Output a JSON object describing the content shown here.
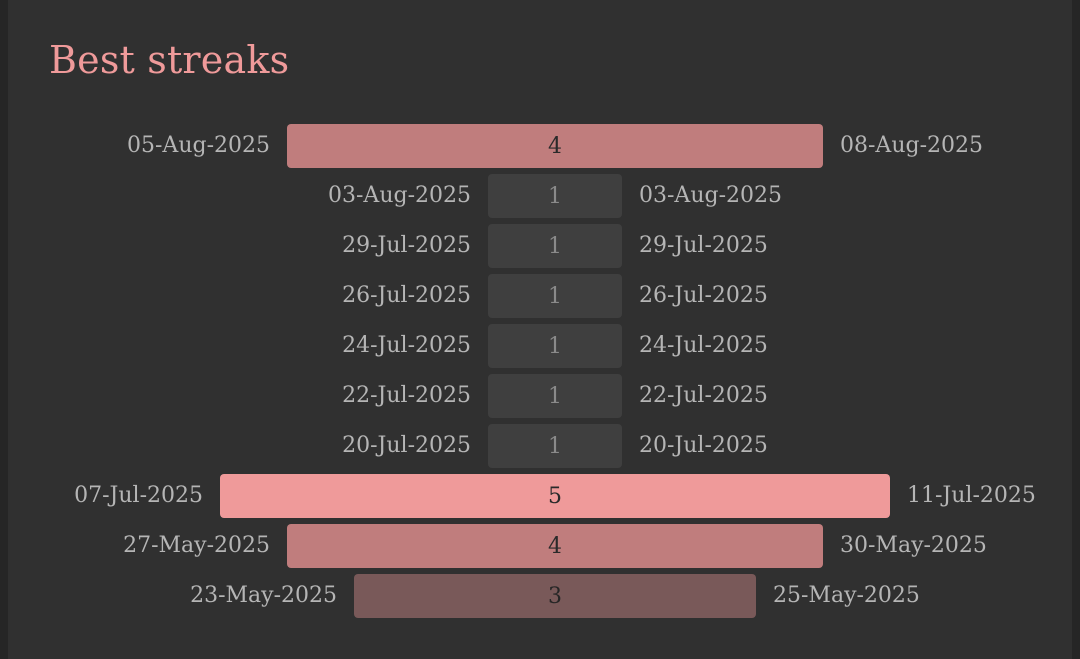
{
  "title": "Best streaks",
  "colors": {
    "accent": "#ef9a9a",
    "text_muted": "#b5b5b5",
    "bar_level_1": "#3f3f3f",
    "bar_level_3": "#795959",
    "bar_level_4": "#c07d7d",
    "bar_level_5": "#ef9a9a"
  },
  "streaks": [
    {
      "start": "05-Aug-2025",
      "end": "08-Aug-2025",
      "length": "4"
    },
    {
      "start": "03-Aug-2025",
      "end": "03-Aug-2025",
      "length": "1"
    },
    {
      "start": "29-Jul-2025",
      "end": "29-Jul-2025",
      "length": "1"
    },
    {
      "start": "26-Jul-2025",
      "end": "26-Jul-2025",
      "length": "1"
    },
    {
      "start": "24-Jul-2025",
      "end": "24-Jul-2025",
      "length": "1"
    },
    {
      "start": "22-Jul-2025",
      "end": "22-Jul-2025",
      "length": "1"
    },
    {
      "start": "20-Jul-2025",
      "end": "20-Jul-2025",
      "length": "1"
    },
    {
      "start": "07-Jul-2025",
      "end": "11-Jul-2025",
      "length": "5"
    },
    {
      "start": "27-May-2025",
      "end": "30-May-2025",
      "length": "4"
    },
    {
      "start": "23-May-2025",
      "end": "25-May-2025",
      "length": "3"
    }
  ]
}
